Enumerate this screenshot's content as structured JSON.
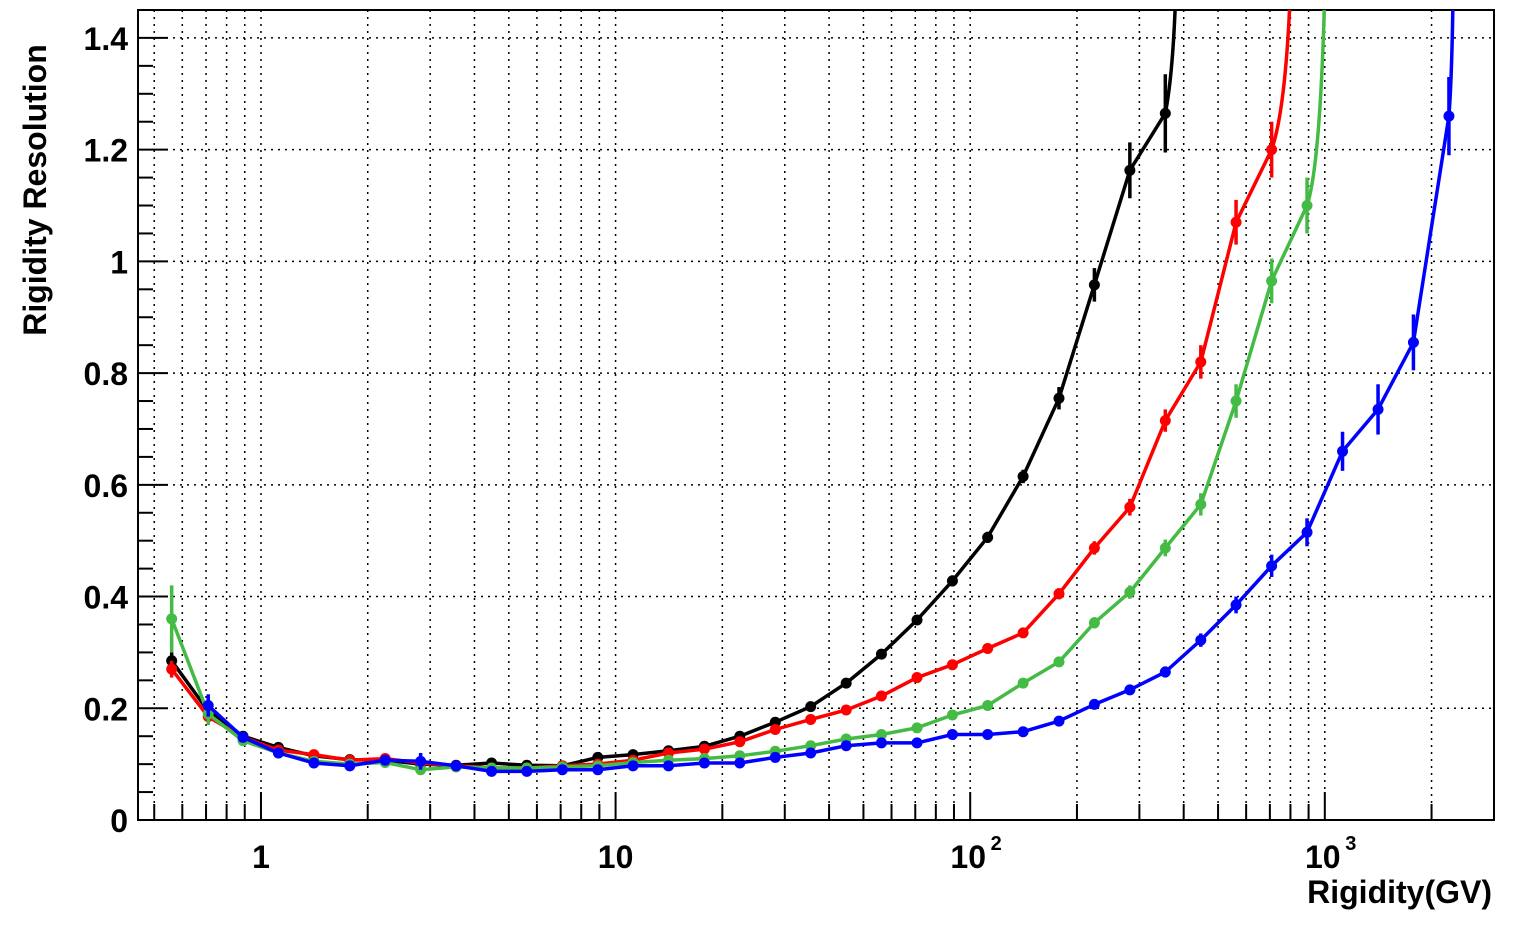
{
  "chart_data": {
    "type": "line",
    "title": "",
    "xlabel": "Rigidity(GV)",
    "ylabel": "Rigidity  Resolution",
    "xscale": "log",
    "xlim": [
      0.45,
      3000
    ],
    "ylim": [
      0,
      1.45
    ],
    "grid": true,
    "legend": "none",
    "x_tick_labels": [
      {
        "value": 1,
        "label": "1"
      },
      {
        "value": 10,
        "label": "10"
      },
      {
        "value": 100,
        "base": "10",
        "exp": "2"
      },
      {
        "value": 1000,
        "base": "10",
        "exp": "3"
      }
    ],
    "y_ticks": [
      0,
      0.2,
      0.4,
      0.6,
      0.8,
      1,
      1.2,
      1.4
    ],
    "y_tick_labels": [
      "0",
      "0.2",
      "0.4",
      "0.6",
      "0.8",
      "1",
      "1.2",
      "1.4"
    ],
    "series": [
      {
        "color": "#000000",
        "x": [
          0.56,
          0.71,
          0.89,
          1.12,
          1.41,
          1.78,
          2.24,
          2.82,
          3.55,
          4.47,
          5.62,
          7.08,
          8.91,
          11.2,
          14.1,
          17.8,
          22.4,
          28.2,
          35.5,
          44.7,
          56.2,
          70.8,
          89.1,
          112,
          141,
          178,
          224,
          282,
          355
        ],
        "y": [
          0.285,
          0.195,
          0.15,
          0.13,
          0.115,
          0.108,
          0.107,
          0.1,
          0.098,
          0.102,
          0.098,
          0.097,
          0.112,
          0.117,
          0.124,
          0.132,
          0.15,
          0.175,
          0.203,
          0.245,
          0.297,
          0.358,
          0.428,
          0.506,
          0.615,
          0.755,
          0.958,
          1.163,
          1.265
        ],
        "err": [
          0.015,
          0.01,
          0.006,
          0.005,
          0.004,
          0.003,
          0.003,
          0.003,
          0.003,
          0.003,
          0.003,
          0.003,
          0.003,
          0.003,
          0.003,
          0.004,
          0.004,
          0.005,
          0.006,
          0.007,
          0.008,
          0.009,
          0.01,
          0.01,
          0.012,
          0.02,
          0.03,
          0.05,
          0.07
        ],
        "rise_to": 380
      },
      {
        "color": "#ff0000",
        "x": [
          0.56,
          0.71,
          0.89,
          1.12,
          1.41,
          1.78,
          2.24,
          2.82,
          3.55,
          4.47,
          5.62,
          7.08,
          8.91,
          11.2,
          14.1,
          17.8,
          22.4,
          28.2,
          35.5,
          44.7,
          56.2,
          70.8,
          89.1,
          112,
          141,
          178,
          224,
          282,
          355,
          447,
          562,
          708
        ],
        "y": [
          0.27,
          0.185,
          0.148,
          0.125,
          0.117,
          0.107,
          0.11,
          0.102,
          0.097,
          0.093,
          0.093,
          0.097,
          0.1,
          0.107,
          0.12,
          0.127,
          0.14,
          0.162,
          0.18,
          0.197,
          0.222,
          0.255,
          0.278,
          0.307,
          0.335,
          0.405,
          0.487,
          0.56,
          0.715,
          0.82,
          1.07,
          1.2
        ],
        "err": [
          0.015,
          0.01,
          0.006,
          0.005,
          0.004,
          0.003,
          0.003,
          0.003,
          0.003,
          0.003,
          0.003,
          0.003,
          0.003,
          0.003,
          0.003,
          0.003,
          0.004,
          0.004,
          0.005,
          0.005,
          0.006,
          0.007,
          0.007,
          0.008,
          0.009,
          0.01,
          0.012,
          0.015,
          0.02,
          0.03,
          0.04,
          0.05
        ],
        "rise_to": 800
      },
      {
        "color": "#44bb44",
        "x": [
          0.56,
          0.71,
          0.89,
          1.12,
          1.41,
          1.78,
          2.24,
          2.82,
          3.55,
          4.47,
          5.62,
          7.08,
          8.91,
          11.2,
          14.1,
          17.8,
          22.4,
          28.2,
          35.5,
          44.7,
          56.2,
          70.8,
          89.1,
          112,
          141,
          178,
          224,
          282,
          355,
          447,
          562,
          708,
          891
        ],
        "y": [
          0.36,
          0.19,
          0.142,
          0.12,
          0.105,
          0.1,
          0.103,
          0.09,
          0.095,
          0.093,
          0.093,
          0.095,
          0.097,
          0.103,
          0.107,
          0.11,
          0.115,
          0.123,
          0.133,
          0.145,
          0.153,
          0.165,
          0.188,
          0.205,
          0.245,
          0.283,
          0.353,
          0.408,
          0.487,
          0.565,
          0.75,
          0.965,
          1.1
        ],
        "err": [
          0.06,
          0.02,
          0.008,
          0.005,
          0.004,
          0.003,
          0.003,
          0.003,
          0.003,
          0.003,
          0.003,
          0.003,
          0.003,
          0.003,
          0.003,
          0.003,
          0.003,
          0.003,
          0.004,
          0.004,
          0.005,
          0.006,
          0.006,
          0.007,
          0.008,
          0.009,
          0.01,
          0.012,
          0.015,
          0.02,
          0.03,
          0.04,
          0.05
        ],
        "rise_to": 1000
      },
      {
        "color": "#0000ff",
        "x": [
          0.71,
          0.89,
          1.12,
          1.41,
          1.78,
          2.24,
          2.82,
          3.55,
          4.47,
          5.62,
          7.08,
          8.91,
          11.2,
          14.1,
          17.8,
          22.4,
          28.2,
          35.5,
          44.7,
          56.2,
          70.8,
          89.1,
          112,
          141,
          178,
          224,
          282,
          355,
          447,
          562,
          708,
          891,
          1122,
          1413,
          1778,
          2239
        ],
        "y": [
          0.205,
          0.148,
          0.12,
          0.102,
          0.097,
          0.107,
          0.105,
          0.097,
          0.087,
          0.087,
          0.09,
          0.09,
          0.097,
          0.097,
          0.102,
          0.102,
          0.112,
          0.12,
          0.133,
          0.138,
          0.138,
          0.153,
          0.153,
          0.158,
          0.177,
          0.207,
          0.233,
          0.265,
          0.322,
          0.385,
          0.455,
          0.515,
          0.66,
          0.735,
          0.855,
          1.26
        ],
        "err": [
          0.02,
          0.008,
          0.005,
          0.004,
          0.003,
          0.005,
          0.015,
          0.004,
          0.003,
          0.003,
          0.003,
          0.003,
          0.003,
          0.003,
          0.003,
          0.003,
          0.003,
          0.004,
          0.004,
          0.005,
          0.005,
          0.006,
          0.006,
          0.006,
          0.007,
          0.008,
          0.009,
          0.01,
          0.012,
          0.015,
          0.02,
          0.025,
          0.035,
          0.045,
          0.05,
          0.07
        ],
        "rise_to": 2300
      }
    ]
  }
}
